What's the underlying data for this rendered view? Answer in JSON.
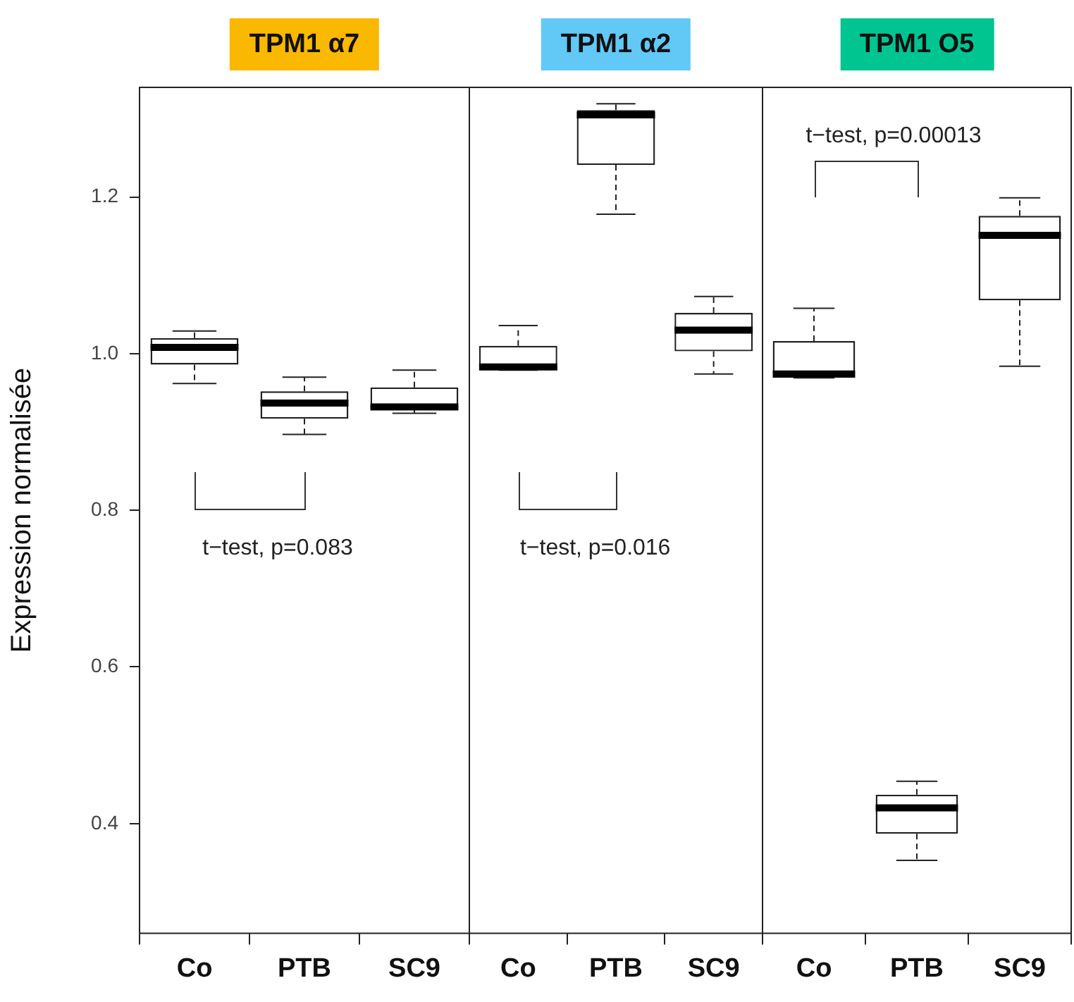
{
  "chart_data": [
    {
      "type": "box",
      "title": "TPM1 α7",
      "ylabel": "Expression normalisée",
      "categories": [
        "Co",
        "PTB",
        "SC9"
      ],
      "boxes": [
        {
          "low": 0.962,
          "q1": 0.986,
          "median": 1.008,
          "q3": 1.02,
          "high": 1.029
        },
        {
          "low": 0.897,
          "q1": 0.917,
          "median": 0.937,
          "q3": 0.952,
          "high": 0.97
        },
        {
          "low": 0.924,
          "q1": 0.928,
          "median": 0.932,
          "q3": 0.957,
          "high": 0.979
        }
      ],
      "ylim": [
        0.26,
        1.34
      ],
      "yticks": [
        0.4,
        0.6,
        0.8,
        {
          "value": 1,
          "label": "1.0"
        },
        1.2
      ],
      "grid": false,
      "legend": false,
      "annotations": [
        "t−test, p=0.083"
      ]
    },
    {
      "type": "box",
      "title": "TPM1 α2",
      "categories": [
        "Co",
        "PTB",
        "SC9"
      ],
      "boxes": [
        {
          "low": 0.979,
          "q1": 0.979,
          "median": 0.983,
          "q3": 1.01,
          "high": 1.036
        },
        {
          "low": 1.178,
          "q1": 1.241,
          "median": 1.305,
          "q3": 1.311,
          "high": 1.319
        },
        {
          "low": 0.974,
          "q1": 1.003,
          "median": 1.03,
          "q3": 1.052,
          "high": 1.073
        }
      ],
      "ylim": [
        0.26,
        1.34
      ],
      "yticks": [
        0.4,
        0.6,
        0.8,
        1.0,
        1.2
      ],
      "tick_labels": "x",
      "grid": false,
      "legend": false,
      "annotations": [
        "t−test, p=0.016"
      ]
    },
    {
      "type": "box",
      "title": "TPM1 O5",
      "categories": [
        "Co",
        "PTB",
        "SC9"
      ],
      "boxes": [
        {
          "low": 0.969,
          "q1": 0.969,
          "median": 0.974,
          "q3": 1.016,
          "high": 1.058
        },
        {
          "low": 0.353,
          "q1": 0.387,
          "median": 0.42,
          "q3": 0.437,
          "high": 0.454
        },
        {
          "low": 0.984,
          "q1": 1.068,
          "median": 1.151,
          "q3": 1.176,
          "high": 1.199
        }
      ],
      "ylim": [
        0.26,
        1.34
      ],
      "yticks": [
        0.4,
        0.6,
        0.8,
        1.0,
        1.2
      ],
      "tick_labels": "x",
      "grid": false,
      "legend": false,
      "annotations": [
        "t−test, p=0.00013"
      ]
    }
  ]
}
